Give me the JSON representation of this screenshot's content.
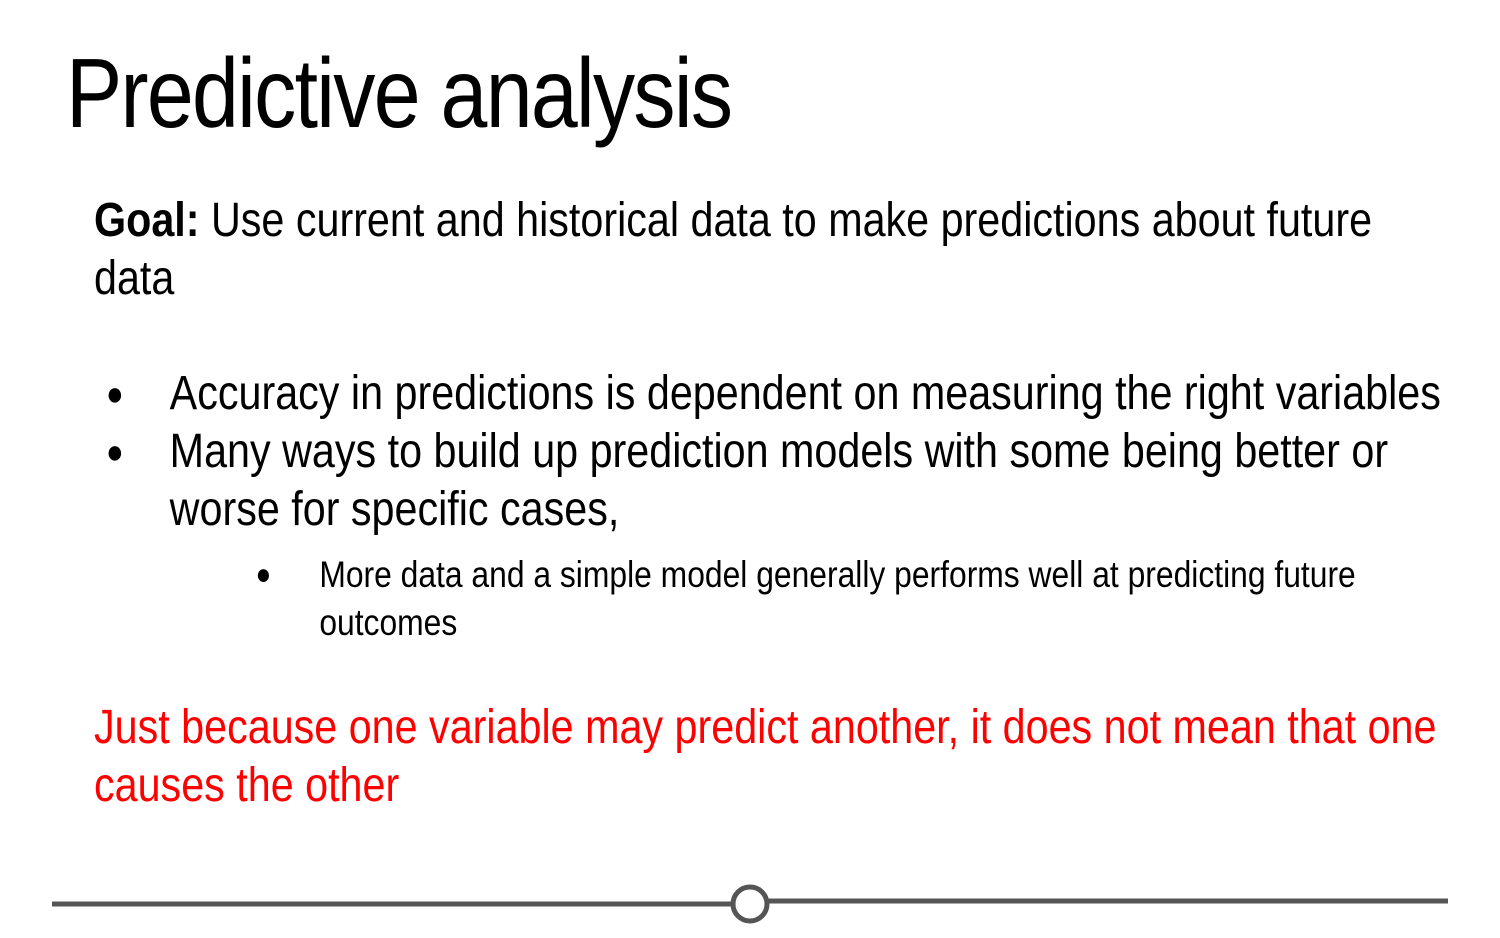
{
  "slide": {
    "title": "Predictive analysis",
    "goal_label": "Goal:",
    "goal_text": " Use current and historical data to make predictions about future data",
    "bullets": [
      "Accuracy in predictions is dependent on measuring the right variables",
      "Many ways to build up prediction models with some being better or worse for specific cases,"
    ],
    "sub_bullets": [
      "More data and a simple model generally performs well at predicting future outcomes"
    ],
    "warning": "Just because one variable may predict another, it does not mean that one causes the other",
    "bullet_glyph": "●"
  },
  "colors": {
    "warning": "#ff0000",
    "rule": "#555555"
  }
}
